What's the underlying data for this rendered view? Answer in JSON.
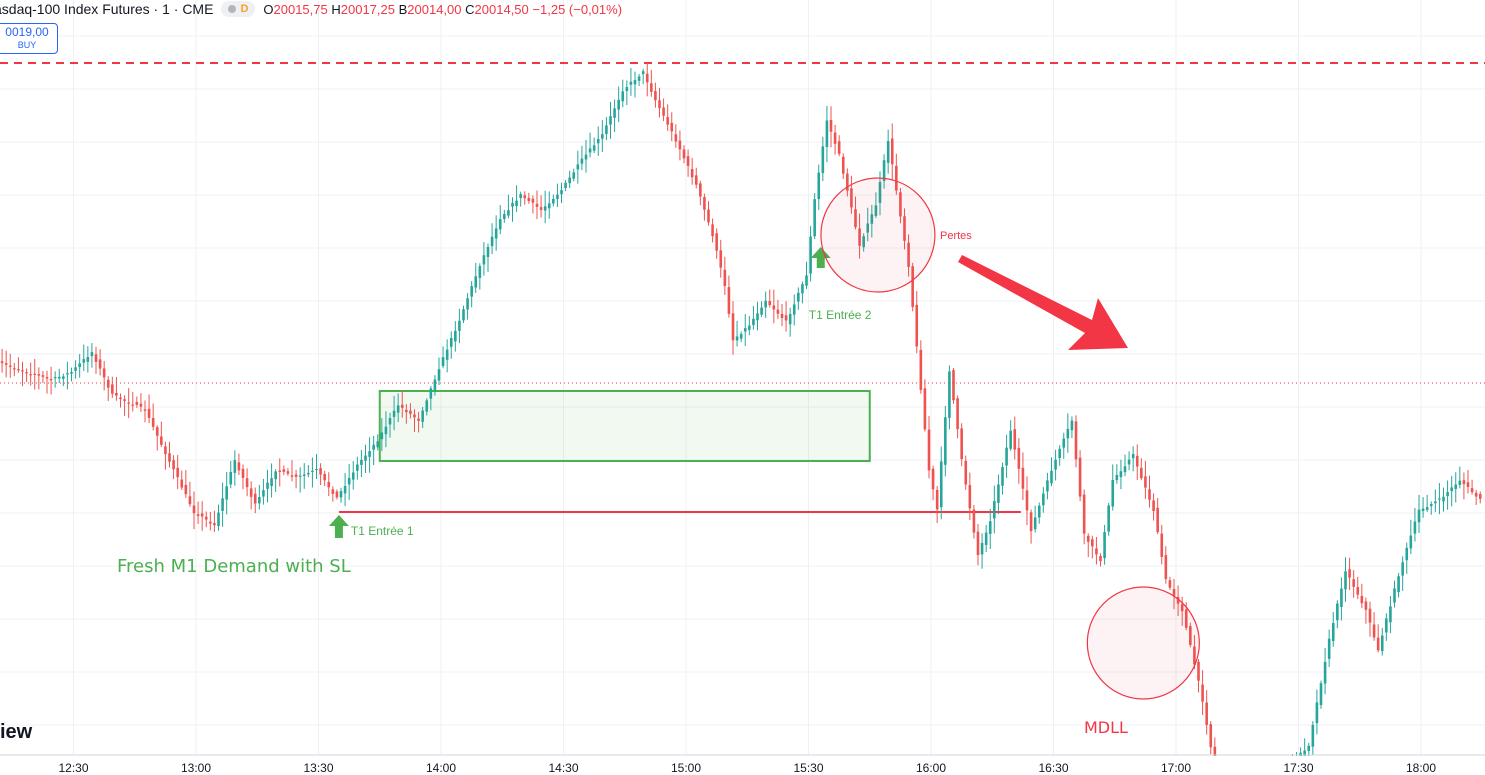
{
  "header": {
    "title": "asdaq-100 Index Futures · 1 · CME",
    "badge_letter": "D",
    "ohlc": {
      "o_label": "O",
      "o": "20015,75",
      "h_label": "H",
      "h": "20017,25",
      "b_label": "B",
      "b": "20014,00",
      "c_label": "C",
      "c": "20014,50",
      "change": "−1,25 (−0,01%)"
    }
  },
  "buy_button": {
    "price": "0019,00",
    "label": "BUY"
  },
  "logo_fragment": "iew",
  "colors": {
    "up": "#26a69a",
    "down": "#ef5350",
    "demand_zone": "#4caf50",
    "annotation_red": "#f23645",
    "grid": "#eef0f3"
  },
  "annotations": {
    "demand_label": "Fresh M1 Demand with SL",
    "entry1": "T1 Entrée 1",
    "entry2": "T1 Entrée 2",
    "losses": "Pertes",
    "mdll": "MDLL"
  },
  "chart_data": {
    "type": "candlestick",
    "timeframe": "1",
    "x_ticks": [
      "12:30",
      "13:00",
      "13:30",
      "14:00",
      "14:30",
      "15:00",
      "15:30",
      "16:00",
      "16:30",
      "17:00",
      "17:30",
      "18:00"
    ],
    "keyframes": [
      [
        "12:10",
        360
      ],
      [
        "12:25",
        380
      ],
      [
        "12:30",
        372
      ],
      [
        "12:35",
        352
      ],
      [
        "12:40",
        395
      ],
      [
        "12:48",
        410
      ],
      [
        "12:55",
        470
      ],
      [
        "13:00",
        512
      ],
      [
        "13:05",
        525
      ],
      [
        "13:10",
        460
      ],
      [
        "13:15",
        505
      ],
      [
        "13:20",
        470
      ],
      [
        "13:25",
        478
      ],
      [
        "13:30",
        470
      ],
      [
        "13:35",
        498
      ],
      [
        "13:40",
        465
      ],
      [
        "13:45",
        440
      ],
      [
        "13:50",
        405
      ],
      [
        "13:55",
        420
      ],
      [
        "14:00",
        368
      ],
      [
        "14:05",
        320
      ],
      [
        "14:10",
        265
      ],
      [
        "14:15",
        218
      ],
      [
        "14:20",
        195
      ],
      [
        "14:25",
        210
      ],
      [
        "14:30",
        190
      ],
      [
        "14:35",
        160
      ],
      [
        "14:40",
        135
      ],
      [
        "14:45",
        90
      ],
      [
        "14:50",
        72
      ],
      [
        "14:53",
        100
      ],
      [
        "14:58",
        140
      ],
      [
        "15:03",
        185
      ],
      [
        "15:07",
        235
      ],
      [
        "15:10",
        285
      ],
      [
        "15:12",
        340
      ],
      [
        "15:16",
        325
      ],
      [
        "15:20",
        300
      ],
      [
        "15:25",
        322
      ],
      [
        "15:30",
        275
      ],
      [
        "15:32",
        200
      ],
      [
        "15:35",
        120
      ],
      [
        "15:38",
        155
      ],
      [
        "15:40",
        190
      ],
      [
        "15:43",
        245
      ],
      [
        "15:47",
        205
      ],
      [
        "15:50",
        140
      ],
      [
        "15:55",
        265
      ],
      [
        "16:00",
        470
      ],
      [
        "16:02",
        510
      ],
      [
        "16:05",
        370
      ],
      [
        "16:08",
        460
      ],
      [
        "16:12",
        555
      ],
      [
        "16:15",
        520
      ],
      [
        "16:20",
        430
      ],
      [
        "16:25",
        530
      ],
      [
        "16:30",
        470
      ],
      [
        "16:35",
        420
      ],
      [
        "16:38",
        535
      ],
      [
        "16:42",
        560
      ],
      [
        "16:45",
        480
      ],
      [
        "16:50",
        455
      ],
      [
        "16:55",
        510
      ],
      [
        "16:58",
        580
      ],
      [
        "17:02",
        610
      ],
      [
        "17:07",
        700
      ],
      [
        "17:10",
        770
      ],
      [
        "17:25",
        780
      ],
      [
        "17:33",
        745
      ],
      [
        "17:38",
        640
      ],
      [
        "17:42",
        570
      ],
      [
        "17:47",
        610
      ],
      [
        "17:50",
        650
      ],
      [
        "17:55",
        575
      ],
      [
        "18:00",
        510
      ],
      [
        "18:05",
        500
      ],
      [
        "18:10",
        480
      ],
      [
        "18:15",
        500
      ]
    ],
    "horizontal_lines": [
      {
        "style": "dashed",
        "color": "#f23645",
        "position": "upper",
        "note": "price level"
      },
      {
        "style": "dotted",
        "color": "#f23645",
        "position": "middle",
        "note": "last price"
      },
      {
        "style": "solid",
        "color": "#f23645",
        "note": "stop loss",
        "from": "13:35",
        "to": "16:22"
      }
    ],
    "demand_zone": {
      "from": "13:45",
      "to": "15:45"
    },
    "entries": [
      {
        "label": "T1 Entrée 1",
        "time": "13:35"
      },
      {
        "label": "T1 Entrée 2",
        "time": "15:33"
      }
    ],
    "circles": [
      {
        "label": "Pertes",
        "time": "15:47"
      },
      {
        "label": "MDLL",
        "time": "16:52"
      }
    ]
  }
}
